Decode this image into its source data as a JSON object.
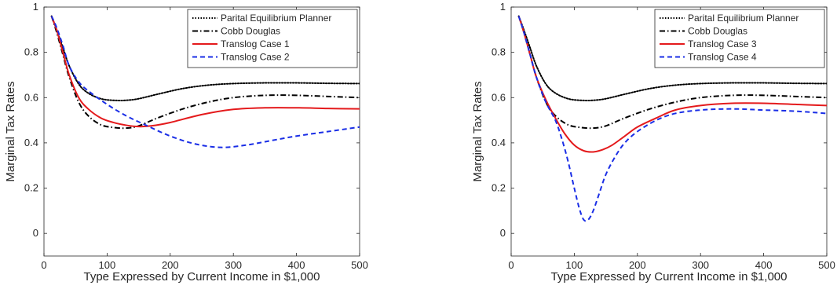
{
  "chart_data": [
    {
      "type": "line",
      "title": "",
      "xlabel": "Type Expressed by Current Income in $1,000",
      "ylabel": "Marginal Tax Rates",
      "xlim": [
        0,
        500
      ],
      "ylim": [
        -0.1,
        1.0
      ],
      "xticks": [
        "0",
        "100",
        "200",
        "300",
        "400",
        "500"
      ],
      "yticks": [
        "0",
        "0.2",
        "0.4",
        "0.6",
        "0.8",
        "1"
      ],
      "grid": false,
      "legend_position": "top-right",
      "series": [
        {
          "name": "Parital Equilibrium Planner",
          "color": "#000000",
          "style": "dotted",
          "x": [
            12,
            20,
            30,
            40,
            55,
            70,
            90,
            110,
            130,
            150,
            180,
            220,
            260,
            300,
            350,
            400,
            450,
            500
          ],
          "y": [
            0.96,
            0.9,
            0.82,
            0.74,
            0.66,
            0.62,
            0.595,
            0.588,
            0.588,
            0.595,
            0.615,
            0.64,
            0.655,
            0.662,
            0.665,
            0.665,
            0.663,
            0.662
          ]
        },
        {
          "name": "Cobb Douglas",
          "color": "#000000",
          "style": "dashdot",
          "x": [
            12,
            20,
            30,
            40,
            55,
            70,
            90,
            110,
            130,
            150,
            180,
            220,
            260,
            300,
            350,
            400,
            450,
            500
          ],
          "y": [
            0.96,
            0.89,
            0.79,
            0.69,
            0.58,
            0.52,
            0.48,
            0.468,
            0.465,
            0.475,
            0.51,
            0.55,
            0.58,
            0.6,
            0.61,
            0.61,
            0.605,
            0.6
          ]
        },
        {
          "name": "Translog Case 1",
          "color": "#e41a1c",
          "style": "solid",
          "x": [
            12,
            20,
            30,
            40,
            55,
            70,
            90,
            110,
            130,
            150,
            170,
            200,
            250,
            300,
            350,
            400,
            450,
            500
          ],
          "y": [
            0.96,
            0.9,
            0.8,
            0.7,
            0.6,
            0.55,
            0.51,
            0.49,
            0.478,
            0.472,
            0.475,
            0.49,
            0.525,
            0.548,
            0.555,
            0.555,
            0.552,
            0.55
          ]
        },
        {
          "name": "Translog Case 2",
          "color": "#1a2ee6",
          "style": "dashed",
          "x": [
            12,
            20,
            30,
            40,
            55,
            70,
            100,
            130,
            160,
            200,
            240,
            280,
            320,
            360,
            400,
            450,
            500
          ],
          "y": [
            0.96,
            0.91,
            0.83,
            0.74,
            0.67,
            0.63,
            0.57,
            0.52,
            0.48,
            0.43,
            0.395,
            0.38,
            0.39,
            0.41,
            0.43,
            0.45,
            0.47
          ]
        }
      ]
    },
    {
      "type": "line",
      "title": "",
      "xlabel": "Type Expressed by Current Income in $1,000",
      "ylabel": "Marginal Tax Rates",
      "xlim": [
        0,
        500
      ],
      "ylim": [
        -0.1,
        1.0
      ],
      "xticks": [
        "0",
        "100",
        "200",
        "300",
        "400",
        "500"
      ],
      "yticks": [
        "0",
        "0.2",
        "0.4",
        "0.6",
        "0.8",
        "1"
      ],
      "grid": false,
      "legend_position": "top-right",
      "series": [
        {
          "name": "Parital Equilibrium Planner",
          "color": "#000000",
          "style": "dotted",
          "x": [
            12,
            20,
            30,
            40,
            55,
            70,
            90,
            110,
            130,
            150,
            180,
            220,
            260,
            300,
            350,
            400,
            450,
            500
          ],
          "y": [
            0.96,
            0.9,
            0.82,
            0.74,
            0.66,
            0.62,
            0.595,
            0.588,
            0.588,
            0.595,
            0.615,
            0.64,
            0.655,
            0.662,
            0.665,
            0.665,
            0.663,
            0.662
          ]
        },
        {
          "name": "Cobb Douglas",
          "color": "#000000",
          "style": "dashdot",
          "x": [
            12,
            20,
            30,
            40,
            55,
            70,
            90,
            110,
            130,
            150,
            180,
            220,
            260,
            300,
            350,
            400,
            450,
            500
          ],
          "y": [
            0.96,
            0.89,
            0.79,
            0.69,
            0.58,
            0.52,
            0.48,
            0.468,
            0.465,
            0.475,
            0.51,
            0.55,
            0.58,
            0.6,
            0.61,
            0.61,
            0.605,
            0.6
          ]
        },
        {
          "name": "Translog Case 3",
          "color": "#e41a1c",
          "style": "solid",
          "x": [
            12,
            20,
            30,
            40,
            55,
            70,
            85,
            100,
            115,
            130,
            145,
            160,
            180,
            200,
            230,
            260,
            300,
            350,
            400,
            450,
            500
          ],
          "y": [
            0.96,
            0.89,
            0.79,
            0.69,
            0.59,
            0.51,
            0.44,
            0.39,
            0.365,
            0.36,
            0.37,
            0.39,
            0.43,
            0.47,
            0.51,
            0.545,
            0.565,
            0.575,
            0.575,
            0.57,
            0.565
          ]
        },
        {
          "name": "Translog Case 4",
          "color": "#1a2ee6",
          "style": "dashed",
          "x": [
            12,
            20,
            30,
            40,
            55,
            70,
            80,
            90,
            100,
            108,
            115,
            122,
            130,
            140,
            150,
            165,
            180,
            200,
            230,
            260,
            300,
            350,
            400,
            450,
            500
          ],
          "y": [
            0.96,
            0.89,
            0.79,
            0.69,
            0.58,
            0.5,
            0.42,
            0.32,
            0.2,
            0.11,
            0.06,
            0.06,
            0.1,
            0.18,
            0.26,
            0.34,
            0.4,
            0.45,
            0.5,
            0.53,
            0.545,
            0.55,
            0.545,
            0.54,
            0.53
          ]
        }
      ]
    }
  ]
}
